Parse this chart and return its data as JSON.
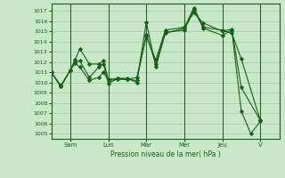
{
  "bg_color": "#c8e8c8",
  "grid_color": "#a0c8a0",
  "line_color": "#1a5c1a",
  "marker_color": "#1a5c1a",
  "xlabel": "Pression niveau de la mer( hPa )",
  "ylim": [
    1004.5,
    1017.7
  ],
  "yticks": [
    1005,
    1006,
    1007,
    1008,
    1009,
    1010,
    1011,
    1012,
    1013,
    1014,
    1015,
    1016,
    1017
  ],
  "day_labels": [
    "Sam",
    "Lun",
    "Mar",
    "Mer",
    "Jeu",
    "V"
  ],
  "day_positions": [
    24,
    72,
    120,
    168,
    216,
    264
  ],
  "xlim": [
    0,
    288
  ],
  "series1_x": [
    0,
    12,
    24,
    30,
    36,
    48,
    60,
    66,
    72,
    84,
    96,
    108,
    120,
    132,
    144,
    168,
    180,
    192,
    216,
    228,
    240,
    264
  ],
  "series1_y": [
    1011.0,
    1009.6,
    1011.2,
    1012.2,
    1013.3,
    1011.8,
    1011.8,
    1012.1,
    1010.3,
    1010.4,
    1010.4,
    1010.0,
    1015.9,
    1011.5,
    1014.8,
    1015.3,
    1017.3,
    1015.4,
    1015.1,
    1014.8,
    1012.3,
    1006.3
  ],
  "series2_x": [
    0,
    12,
    24,
    30,
    36,
    48,
    60,
    66,
    72,
    84,
    96,
    108,
    120,
    132,
    144,
    168,
    180,
    192,
    216,
    228,
    240,
    252,
    264
  ],
  "series2_y": [
    1011.0,
    1009.6,
    1011.2,
    1012.0,
    1012.1,
    1010.5,
    1011.5,
    1011.8,
    1009.9,
    1010.4,
    1010.3,
    1010.2,
    1014.7,
    1011.8,
    1014.9,
    1015.1,
    1017.1,
    1015.3,
    1014.6,
    1015.1,
    1007.2,
    1005.0,
    1006.2
  ],
  "series3_x": [
    0,
    12,
    24,
    30,
    36,
    48,
    60,
    66,
    72,
    84,
    96,
    108,
    120,
    132,
    144,
    168,
    180,
    192,
    216,
    228,
    240,
    264
  ],
  "series3_y": [
    1011.0,
    1009.7,
    1011.2,
    1011.9,
    1011.5,
    1010.2,
    1010.5,
    1011.0,
    1010.2,
    1010.3,
    1010.3,
    1010.5,
    1014.5,
    1012.2,
    1015.1,
    1015.4,
    1016.8,
    1015.8,
    1015.0,
    1015.2,
    1009.5,
    1006.3
  ]
}
